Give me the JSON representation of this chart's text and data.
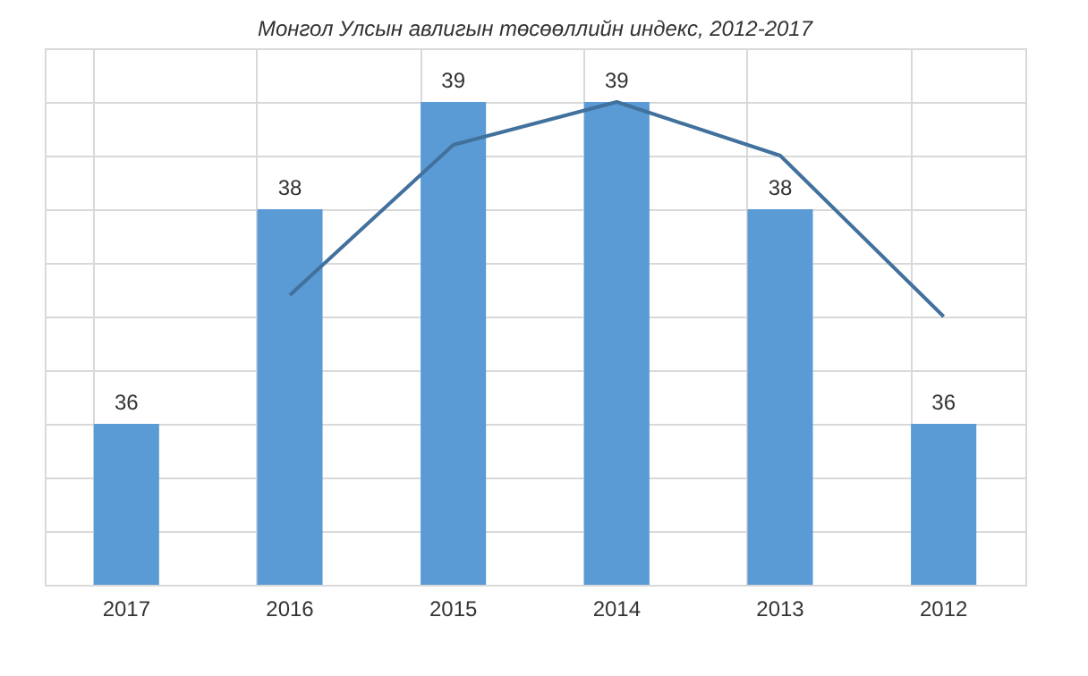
{
  "chart_data": {
    "type": "bar",
    "title": "Монгол Улсын авлигын төсөөллийн индекс, 2012-2017",
    "categories": [
      "2017",
      "2016",
      "2015",
      "2014",
      "2013",
      "2012"
    ],
    "series": [
      {
        "color": "#5b9bd5",
        "values": [
          36,
          38,
          39,
          39,
          38,
          36
        ],
        "value_labels": [
          "36",
          "38",
          "39",
          "39",
          "38",
          "36"
        ]
      },
      {
        "type": "line",
        "color": "#41719c",
        "values": [
          null,
          37.2,
          38.6,
          39,
          38.5,
          37.0
        ]
      }
    ],
    "ylim": [
      34.5,
      39.5
    ],
    "tick_labels": "x",
    "grid": true,
    "marker": "none",
    "line_style": "solid"
  }
}
